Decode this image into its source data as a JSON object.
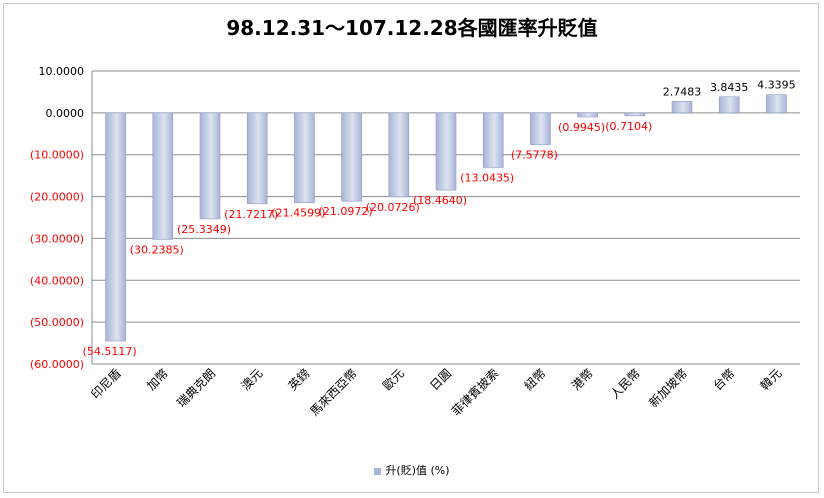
{
  "chart_data": {
    "type": "bar",
    "title": "98.12.31～107.12.28各國匯率升貶值",
    "categories": [
      "印尼盾",
      "加幣",
      "瑞典克朗",
      "澳元",
      "英鎊",
      "馬來西亞幣",
      "歐元",
      "日圓",
      "菲律賓披索",
      "紐幣",
      "港幣",
      "人民幣",
      "新加坡幣",
      "台幣",
      "韓元"
    ],
    "series": [
      {
        "name": "升(貶)值 (%)",
        "values": [
          -54.5117,
          -30.2385,
          -25.3349,
          -21.7217,
          -21.4599,
          -21.0972,
          -20.0726,
          -18.464,
          -13.0435,
          -7.5778,
          -0.9945,
          -0.7104,
          2.7483,
          3.8435,
          4.3395
        ]
      }
    ],
    "data_labels": [
      "(54.5117)",
      "(30.2385)",
      "(25.3349)",
      "(21.7217)",
      "(21.4599)",
      "(21.0972)",
      "(20.0726)",
      "(18.4640)",
      "(13.0435)",
      "(7.5778)",
      "(0.9945)",
      "(0.7104)",
      "2.7483",
      "3.8435",
      "4.3395"
    ],
    "ylim": [
      -60,
      10
    ],
    "y_ticks": [
      10,
      0,
      -10,
      -20,
      -30,
      -40,
      -50,
      -60
    ],
    "y_tick_labels": [
      "10.0000",
      "0.0000",
      "(10.0000)",
      "(20.0000)",
      "(30.0000)",
      "(40.0000)",
      "(50.0000)",
      "(60.0000)"
    ],
    "grid": true,
    "legend_position": "bottom",
    "colors": {
      "bar": "#a9b4d6",
      "bar_highlight": "#dde2f0",
      "negative_label": "#ff0000",
      "positive_label": "#000000",
      "grid": "#8c8c8c"
    }
  }
}
